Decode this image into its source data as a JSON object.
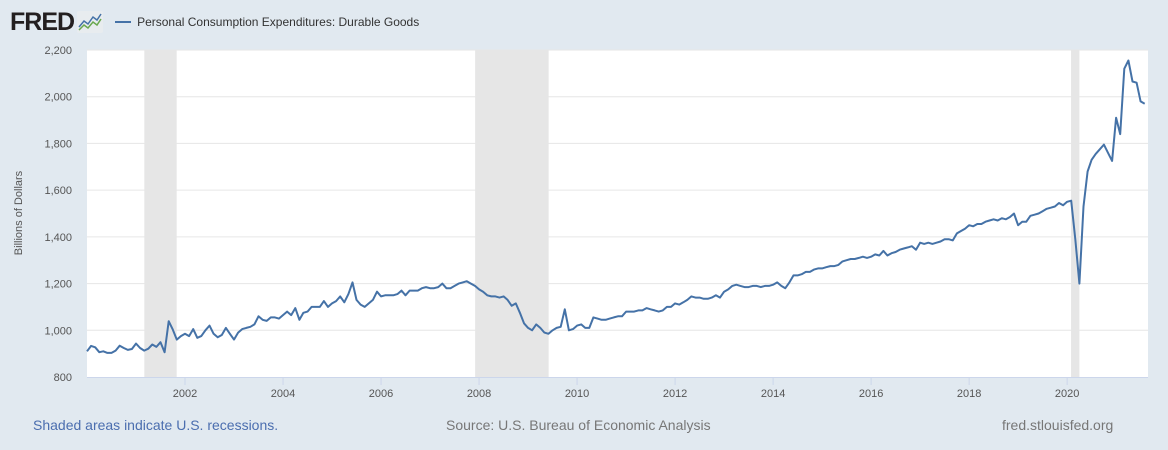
{
  "header": {
    "logo": "FRED",
    "legend_label": "Personal Consumption Expenditures: Durable Goods"
  },
  "footer": {
    "recession_note": "Shaded areas indicate U.S. recessions.",
    "source": "Source: U.S. Bureau of Economic Analysis",
    "site": "fred.stlouisfed.org"
  },
  "chart_data": {
    "type": "line",
    "title": "Personal Consumption Expenditures: Durable Goods",
    "xlabel": "",
    "ylabel": "Billions of Dollars",
    "ylim": [
      800,
      2200
    ],
    "xlim": [
      2000.0,
      2021.65
    ],
    "yticks": [
      800,
      1000,
      1200,
      1400,
      1600,
      1800,
      2000,
      2200
    ],
    "ytick_labels": [
      "800",
      "1,000",
      "1,200",
      "1,400",
      "1,600",
      "1,800",
      "2,000",
      "2,200"
    ],
    "xticks": [
      2002,
      2004,
      2006,
      2008,
      2010,
      2012,
      2014,
      2016,
      2018,
      2020
    ],
    "xtick_labels": [
      "2002",
      "2004",
      "2006",
      "2008",
      "2010",
      "2012",
      "2014",
      "2016",
      "2018",
      "2020"
    ],
    "grid": true,
    "legend": "top-left",
    "color": "#4572a7",
    "recessions": [
      [
        2001.17,
        2001.83
      ],
      [
        2007.92,
        2009.42
      ],
      [
        2020.08,
        2020.25
      ]
    ],
    "start": "2000-01",
    "frequency": "monthly",
    "values": [
      910,
      933,
      927,
      906,
      910,
      903,
      903,
      913,
      934,
      924,
      916,
      920,
      943,
      924,
      913,
      921,
      939,
      929,
      949,
      906,
      1039,
      1003,
      960,
      975,
      985,
      975,
      1005,
      968,
      975,
      1000,
      1020,
      985,
      970,
      980,
      1010,
      985,
      960,
      990,
      1005,
      1010,
      1015,
      1025,
      1060,
      1045,
      1040,
      1055,
      1055,
      1050,
      1065,
      1080,
      1065,
      1095,
      1045,
      1075,
      1080,
      1100,
      1100,
      1100,
      1125,
      1100,
      1115,
      1125,
      1145,
      1120,
      1155,
      1205,
      1130,
      1110,
      1100,
      1115,
      1130,
      1165,
      1145,
      1150,
      1150,
      1150,
      1155,
      1170,
      1150,
      1170,
      1170,
      1170,
      1180,
      1185,
      1180,
      1180,
      1185,
      1200,
      1180,
      1180,
      1190,
      1200,
      1205,
      1210,
      1200,
      1190,
      1175,
      1165,
      1150,
      1145,
      1145,
      1140,
      1145,
      1130,
      1105,
      1115,
      1075,
      1030,
      1010,
      1000,
      1025,
      1010,
      990,
      985,
      1000,
      1010,
      1015,
      1090,
      1000,
      1005,
      1020,
      1025,
      1010,
      1010,
      1055,
      1050,
      1045,
      1045,
      1050,
      1055,
      1060,
      1060,
      1080,
      1080,
      1080,
      1085,
      1085,
      1095,
      1090,
      1085,
      1080,
      1085,
      1100,
      1100,
      1115,
      1110,
      1120,
      1130,
      1145,
      1140,
      1140,
      1135,
      1135,
      1140,
      1150,
      1140,
      1165,
      1175,
      1190,
      1195,
      1190,
      1185,
      1185,
      1190,
      1190,
      1185,
      1190,
      1190,
      1195,
      1205,
      1190,
      1180,
      1205,
      1235,
      1235,
      1240,
      1250,
      1250,
      1260,
      1265,
      1265,
      1270,
      1275,
      1275,
      1280,
      1295,
      1300,
      1305,
      1305,
      1310,
      1315,
      1310,
      1315,
      1325,
      1320,
      1340,
      1320,
      1330,
      1335,
      1345,
      1350,
      1355,
      1360,
      1345,
      1375,
      1370,
      1375,
      1370,
      1375,
      1380,
      1390,
      1390,
      1385,
      1415,
      1425,
      1435,
      1450,
      1445,
      1455,
      1455,
      1465,
      1470,
      1475,
      1470,
      1480,
      1475,
      1485,
      1500,
      1450,
      1465,
      1465,
      1490,
      1495,
      1500,
      1510,
      1520,
      1525,
      1530,
      1545,
      1535,
      1550,
      1555,
      1390,
      1200,
      1530,
      1680,
      1730,
      1755,
      1775,
      1795,
      1760,
      1725,
      1910,
      1840,
      2120,
      2155,
      2065,
      2060,
      1980,
      1970
    ]
  }
}
